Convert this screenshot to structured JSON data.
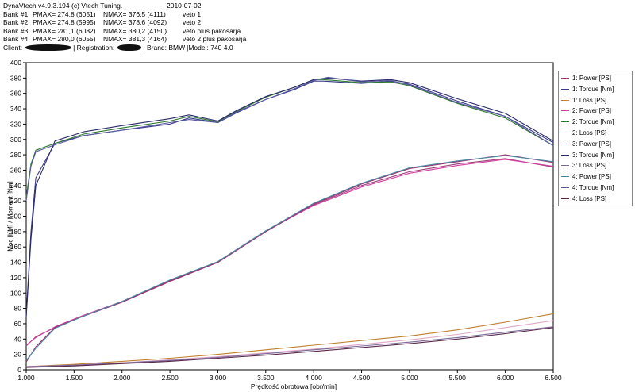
{
  "header": {
    "app_title": "DynaVtech v4.9.3.194 (c) Vtech Tuning.",
    "date": "2010-07-02",
    "banks": [
      {
        "label": "Bank #1:",
        "pmax": "PMAX= 274,8 (6051)",
        "nmax": "NMAX= 376,5 (4111)",
        "desc": "veto 1"
      },
      {
        "label": "Bank #2:",
        "pmax": "PMAX= 274,8 (5995)",
        "nmax": "NMAX= 378,6 (4092)",
        "desc": "veto 2"
      },
      {
        "label": "Bank #3:",
        "pmax": "PMAX= 281,1 (6082)",
        "nmax": "NMAX= 380,2 (4150)",
        "desc": "veto plus pakosarja"
      },
      {
        "label": "Bank #4:",
        "pmax": "PMAX= 280,0 (6055)",
        "nmax": "NMAX= 381,3 (4164)",
        "desc": "veto 2 plus pakosarja"
      }
    ],
    "client_label": "Client:",
    "registration_label": "| Registration:",
    "brand": "| Brand: BMW",
    "model": "|Model: 740 4.0"
  },
  "chart_data": {
    "type": "line",
    "xlabel": "Prędkość obrotowa [obr/min]",
    "ylabel": "Moc [KM] / Moment [Nm]",
    "xlim": [
      1000,
      6500
    ],
    "ylim": [
      0,
      400
    ],
    "x_ticks": [
      1000,
      1500,
      2000,
      2500,
      3000,
      3500,
      4000,
      4500,
      5000,
      5500,
      6000,
      6500
    ],
    "x_tick_labels": [
      "1.000",
      "1.500",
      "2.000",
      "2.500",
      "3.000",
      "3.500",
      "4.000",
      "4.500",
      "5.000",
      "5.500",
      "6.000",
      "6.500"
    ],
    "y_ticks": [
      0,
      20,
      40,
      60,
      80,
      100,
      120,
      140,
      160,
      180,
      200,
      220,
      240,
      260,
      280,
      300,
      320,
      340,
      360,
      380,
      400
    ],
    "grid": false,
    "legend_position": "right",
    "series": [
      {
        "name": "1: Power [PS]",
        "color": "#a0407a",
        "x": [
          1000,
          1100,
          1300,
          1600,
          2000,
          2500,
          3000,
          3500,
          4000,
          4500,
          5000,
          5500,
          6000,
          6500
        ],
        "y": [
          31,
          43,
          55,
          70,
          88,
          115,
          140,
          180,
          215,
          240,
          258,
          268,
          275,
          264
        ]
      },
      {
        "name": "1: Torque [Nm]",
        "color": "#3a3a8c",
        "x": [
          1000,
          1050,
          1100,
          1300,
          1600,
          2000,
          2500,
          2700,
          3000,
          3200,
          3500,
          3800,
          4000,
          4100,
          4500,
          4800,
          5000,
          5500,
          6000,
          6500
        ],
        "y": [
          70,
          180,
          250,
          295,
          305,
          312,
          320,
          328,
          322,
          335,
          352,
          365,
          376,
          376,
          373,
          376,
          372,
          350,
          330,
          296
        ]
      },
      {
        "name": "1: Loss [PS]",
        "color": "#c08030",
        "x": [
          1000,
          1500,
          2000,
          2500,
          3000,
          3500,
          4000,
          4500,
          5000,
          5500,
          6000,
          6500
        ],
        "y": [
          4,
          7,
          11,
          15,
          20,
          26,
          32,
          38,
          44,
          52,
          62,
          73
        ]
      },
      {
        "name": "2: Power [PS]",
        "color": "#d040a0",
        "x": [
          1000,
          1100,
          1300,
          1600,
          2000,
          2500,
          3000,
          3500,
          4000,
          4500,
          5000,
          5500,
          6000,
          6500
        ],
        "y": [
          32,
          42,
          56,
          71,
          89,
          116,
          141,
          181,
          214,
          238,
          256,
          266,
          274,
          265
        ]
      },
      {
        "name": "2: Torque [Nm]",
        "color": "#2e7a2e",
        "x": [
          1000,
          1050,
          1100,
          1300,
          1600,
          2000,
          2500,
          2700,
          3000,
          3200,
          3500,
          3800,
          4000,
          4100,
          4500,
          4800,
          5000,
          5500,
          6000,
          6500
        ],
        "y": [
          225,
          268,
          286,
          295,
          307,
          315,
          324,
          330,
          323,
          337,
          355,
          368,
          378,
          378,
          374,
          375,
          370,
          347,
          328,
          292
        ]
      },
      {
        "name": "2: Loss [PS]",
        "color": "#e0a8c8",
        "x": [
          1000,
          1500,
          2000,
          2500,
          3000,
          3500,
          4000,
          4500,
          5000,
          5500,
          6000,
          6500
        ],
        "y": [
          4,
          6,
          9,
          13,
          17,
          22,
          27,
          33,
          39,
          46,
          55,
          64
        ]
      },
      {
        "name": "3: Power [PS]",
        "color": "#9a3070",
        "x": [
          1000,
          1100,
          1300,
          1600,
          2000,
          2500,
          3000,
          3500,
          4000,
          4500,
          5000,
          5500,
          6000,
          6500
        ],
        "y": [
          10,
          30,
          55,
          70,
          88,
          116,
          140,
          180,
          216,
          242,
          262,
          271,
          280,
          270
        ]
      },
      {
        "name": "3: Torque [Nm]",
        "color": "#2a2a6a",
        "x": [
          1000,
          1050,
          1100,
          1300,
          1600,
          2000,
          2500,
          2700,
          3000,
          3200,
          3500,
          3800,
          4000,
          4150,
          4500,
          4800,
          5000,
          5500,
          6000,
          6500
        ],
        "y": [
          68,
          170,
          240,
          298,
          310,
          318,
          327,
          332,
          324,
          338,
          356,
          368,
          378,
          380,
          376,
          378,
          374,
          353,
          334,
          298
        ]
      },
      {
        "name": "3: Loss [PS]",
        "color": "#7a6a9a",
        "x": [
          1000,
          1500,
          2000,
          2500,
          3000,
          3500,
          4000,
          4500,
          5000,
          5500,
          6000,
          6500
        ],
        "y": [
          4,
          6,
          9,
          12,
          16,
          21,
          26,
          31,
          36,
          42,
          49,
          56
        ]
      },
      {
        "name": "4: Power [PS]",
        "color": "#4a8aa0",
        "x": [
          1000,
          1100,
          1300,
          1600,
          2000,
          2500,
          3000,
          3500,
          4000,
          4500,
          5000,
          5500,
          6000,
          6500
        ],
        "y": [
          12,
          28,
          54,
          70,
          89,
          117,
          141,
          181,
          217,
          243,
          263,
          272,
          279,
          271
        ]
      },
      {
        "name": "4: Torque [Nm]",
        "color": "#5a5aa0",
        "x": [
          1000,
          1050,
          1100,
          1300,
          1600,
          2000,
          2500,
          2700,
          3000,
          3200,
          3500,
          3800,
          4000,
          4150,
          4500,
          4800,
          5000,
          5500,
          6000,
          6500
        ],
        "y": [
          220,
          265,
          284,
          293,
          305,
          312,
          322,
          326,
          322,
          336,
          352,
          366,
          377,
          381,
          375,
          377,
          371,
          348,
          330,
          292
        ]
      },
      {
        "name": "4: Loss [PS]",
        "color": "#5a2a4a",
        "x": [
          1000,
          1500,
          2000,
          2500,
          3000,
          3500,
          4000,
          4500,
          5000,
          5500,
          6000,
          6500
        ],
        "y": [
          3,
          5,
          8,
          11,
          15,
          19,
          24,
          29,
          34,
          40,
          47,
          55
        ]
      }
    ]
  }
}
